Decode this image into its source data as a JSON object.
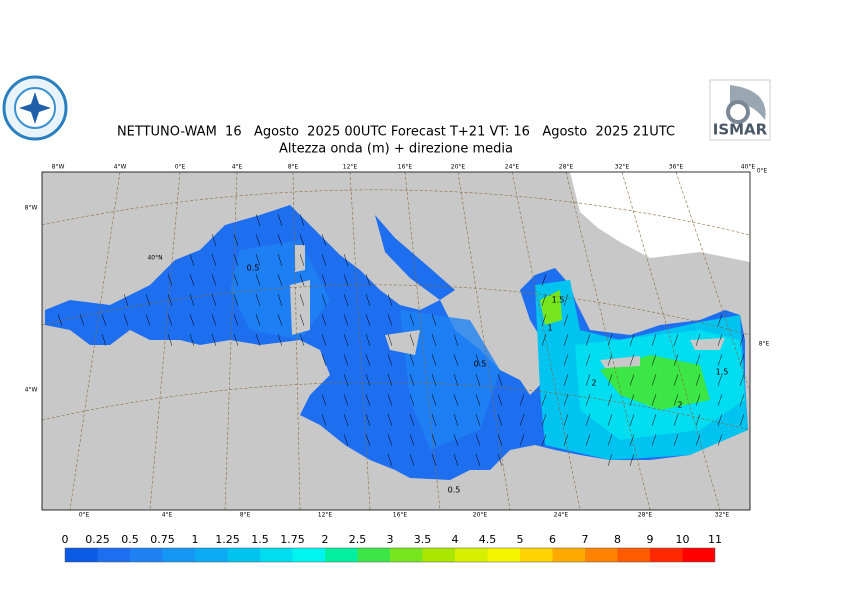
{
  "header": {
    "title": "NETTUNO-WAM  16   Agosto  2025 00UTC Forecast T+21 VT: 16   Agosto  2025 21UTC",
    "subtitle": "Altezza onda (m) + direzione media",
    "logo_right": "ISMAR"
  },
  "map": {
    "top_labels": [
      "8°W",
      "4°W",
      "0°E",
      "4°E",
      "8°E",
      "12°E",
      "16°E",
      "20°E",
      "24°E",
      "28°E",
      "32°E",
      "36°E",
      "40°E"
    ],
    "bottom_labels": [
      "0°E",
      "4°E",
      "8°E",
      "12°E",
      "16°E",
      "20°E",
      "24°E",
      "28°E",
      "32°E"
    ],
    "left_labels": [
      "8°W",
      "40°N",
      "4°W"
    ],
    "right_labels": [
      "0°E",
      "8°E"
    ],
    "contour_labels": [
      "0.5",
      "0.5",
      "0.5",
      "1.5",
      "1",
      "2",
      "1.5",
      "2"
    ]
  },
  "legend": {
    "labels": [
      "0",
      "0.25",
      "0.5",
      "0.75",
      "1",
      "1.25",
      "1.5",
      "1.75",
      "2",
      "2.5",
      "3",
      "3.5",
      "4",
      "4.5",
      "5",
      "6",
      "7",
      "8",
      "9",
      "10",
      "11"
    ],
    "colors": [
      "#0a5ae6",
      "#1e6ef0",
      "#1e82f5",
      "#1496f5",
      "#0aaaf5",
      "#00c3f0",
      "#00dcf0",
      "#00f5f0",
      "#00f0a0",
      "#3ce646",
      "#78e61e",
      "#aae600",
      "#d7f000",
      "#f5f500",
      "#ffd200",
      "#ffaa00",
      "#ff8200",
      "#ff5a00",
      "#ff2800",
      "#ff0000"
    ]
  }
}
